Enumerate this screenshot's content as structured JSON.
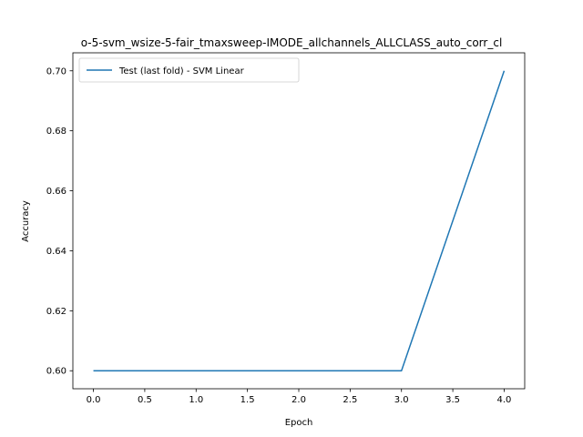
{
  "chart_data": {
    "type": "line",
    "title": "o-5-svm_wsize-5-fair_tmaxsweep-IMODE_allchannels_ALLCLASS_auto_corr_cl",
    "xlabel": "Epoch",
    "ylabel": "Accuracy",
    "xlim": [
      -0.2,
      4.2
    ],
    "ylim": [
      0.594,
      0.706
    ],
    "xticks": [
      0.0,
      0.5,
      1.0,
      1.5,
      2.0,
      2.5,
      3.0,
      3.5,
      4.0
    ],
    "xtick_labels": [
      "0.0",
      "0.5",
      "1.0",
      "1.5",
      "2.0",
      "2.5",
      "3.0",
      "3.5",
      "4.0"
    ],
    "yticks": [
      0.6,
      0.62,
      0.64,
      0.66,
      0.68,
      0.7
    ],
    "ytick_labels": [
      "0.60",
      "0.62",
      "0.64",
      "0.66",
      "0.68",
      "0.70"
    ],
    "grid": false,
    "legend_position": "upper-left",
    "series": [
      {
        "name": "Test (last fold) - SVM Linear",
        "color": "#1f77b4",
        "x": [
          0,
          1,
          2,
          3,
          4
        ],
        "y": [
          0.6,
          0.6,
          0.6,
          0.6,
          0.7
        ]
      }
    ]
  }
}
